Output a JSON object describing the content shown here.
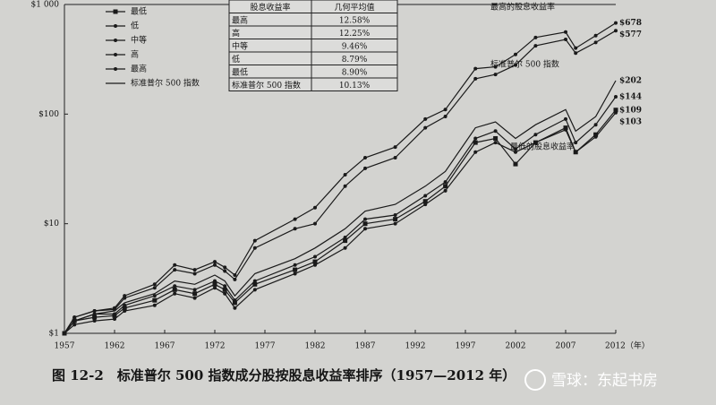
{
  "chart_data": {
    "type": "line",
    "log_y": true,
    "grid": false,
    "ylim": [
      1,
      1000
    ],
    "yticks": [
      {
        "value": 1,
        "label": "$1"
      },
      {
        "value": 10,
        "label": "$10"
      },
      {
        "value": 100,
        "label": "$100"
      },
      {
        "value": 1000,
        "label": "$1 000"
      }
    ],
    "xlim": [
      1957,
      2012
    ],
    "xticks": [
      1957,
      1962,
      1967,
      1972,
      1977,
      1982,
      1987,
      1992,
      1997,
      2002,
      2007,
      {
        "value": 2012,
        "label": "2012（年）"
      }
    ],
    "x": [
      1957,
      1958,
      1960,
      1962,
      1963,
      1966,
      1968,
      1970,
      1972,
      1973,
      1974,
      1976,
      1980,
      1982,
      1985,
      1987,
      1990,
      1993,
      1995,
      1998,
      2000,
      2002,
      2004,
      2007,
      2008,
      2010,
      2012
    ],
    "series": [
      {
        "name": "最低",
        "color": "#1a1a1a",
        "marker": "square",
        "values": [
          1,
          1.3,
          1.4,
          1.45,
          1.7,
          2.0,
          2.5,
          2.3,
          2.8,
          2.5,
          1.9,
          2.8,
          3.8,
          4.5,
          7,
          10,
          11,
          16,
          22,
          55,
          60,
          35,
          55,
          75,
          45,
          65,
          109
        ],
        "value_labels": [
          null,
          null,
          null,
          null,
          null,
          null,
          null,
          null,
          null,
          null,
          null,
          null,
          null,
          null,
          null,
          null,
          null,
          null,
          null,
          null,
          null,
          null,
          null,
          null,
          null,
          null,
          "$109"
        ]
      },
      {
        "name": "低",
        "color": "#1a1a1a",
        "marker": "circle",
        "values": [
          1,
          1.2,
          1.3,
          1.35,
          1.6,
          1.8,
          2.3,
          2.1,
          2.6,
          2.3,
          1.7,
          2.5,
          3.5,
          4.2,
          6,
          9,
          10,
          15,
          20,
          45,
          55,
          45,
          55,
          72,
          45,
          62,
          103
        ],
        "value_labels": [
          null,
          null,
          null,
          null,
          null,
          null,
          null,
          null,
          null,
          null,
          null,
          null,
          null,
          null,
          null,
          null,
          null,
          null,
          null,
          null,
          null,
          null,
          null,
          null,
          null,
          null,
          "$103"
        ]
      },
      {
        "name": "中等",
        "color": "#1a1a1a",
        "marker": "circle",
        "values": [
          1,
          1.3,
          1.5,
          1.5,
          1.8,
          2.2,
          2.7,
          2.5,
          3.0,
          2.7,
          2.0,
          3.0,
          4.2,
          5,
          7.5,
          11,
          12,
          18,
          24,
          60,
          70,
          48,
          65,
          90,
          55,
          80,
          144
        ],
        "value_labels": [
          null,
          null,
          null,
          null,
          null,
          null,
          null,
          null,
          null,
          null,
          null,
          null,
          null,
          null,
          null,
          null,
          null,
          null,
          null,
          null,
          null,
          null,
          null,
          null,
          null,
          null,
          "$144"
        ]
      },
      {
        "name": "高",
        "color": "#1a1a1a",
        "marker": "circle",
        "values": [
          1,
          1.4,
          1.6,
          1.65,
          2.1,
          2.6,
          3.8,
          3.5,
          4.2,
          3.7,
          3.1,
          6,
          9,
          10,
          22,
          32,
          40,
          75,
          95,
          210,
          230,
          280,
          420,
          480,
          360,
          450,
          577
        ],
        "value_labels": [
          null,
          null,
          null,
          null,
          null,
          null,
          null,
          null,
          null,
          null,
          null,
          null,
          null,
          null,
          null,
          null,
          null,
          null,
          null,
          null,
          null,
          null,
          null,
          null,
          null,
          null,
          "$577"
        ]
      },
      {
        "name": "最高",
        "color": "#1a1a1a",
        "marker": "circle",
        "values": [
          1,
          1.4,
          1.6,
          1.7,
          2.2,
          2.8,
          4.2,
          3.8,
          4.5,
          4.0,
          3.4,
          7,
          11,
          14,
          28,
          40,
          50,
          90,
          110,
          260,
          270,
          350,
          500,
          560,
          400,
          520,
          678
        ],
        "value_labels": [
          null,
          null,
          null,
          null,
          null,
          null,
          null,
          null,
          null,
          null,
          null,
          null,
          null,
          null,
          null,
          null,
          null,
          null,
          null,
          null,
          null,
          null,
          null,
          null,
          null,
          null,
          "$678"
        ]
      },
      {
        "name": "标准普尔 500 指数",
        "color": "#1a1a1a",
        "marker": "none",
        "values": [
          1,
          1.3,
          1.5,
          1.6,
          1.9,
          2.3,
          3.0,
          2.8,
          3.4,
          3.0,
          2.2,
          3.5,
          4.8,
          6,
          9,
          13,
          15,
          22,
          30,
          75,
          85,
          60,
          80,
          110,
          70,
          95,
          202
        ],
        "value_labels": [
          null,
          null,
          null,
          null,
          null,
          null,
          null,
          null,
          null,
          null,
          null,
          null,
          null,
          null,
          null,
          null,
          null,
          null,
          null,
          null,
          null,
          null,
          null,
          null,
          null,
          null,
          "$202"
        ]
      }
    ],
    "table": {
      "columns": [
        "股息收益率",
        "几何平均值"
      ],
      "rows": [
        [
          "最高",
          "12.58%"
        ],
        [
          "高",
          "12.25%"
        ],
        [
          "中等",
          "9.46%"
        ],
        [
          "低",
          "8.79%"
        ],
        [
          "最低",
          "8.90%"
        ],
        [
          "标准普尔 500 指数",
          "10.13%"
        ]
      ]
    },
    "annotations": [
      "最高的股息收益率",
      "标准普尔 500 指数",
      "最低的股息收益率"
    ],
    "caption": "图 12-2　标准普尔 500 指数成分股按股息收益率排序（1957—2012 年）"
  },
  "watermark": "雪球：东起书房"
}
